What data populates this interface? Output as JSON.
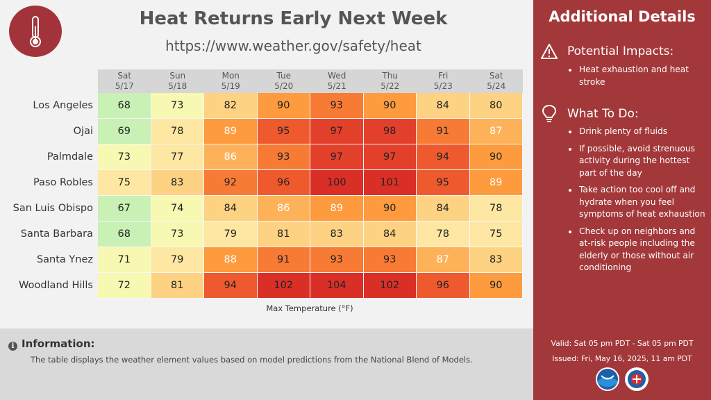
{
  "header": {
    "title": "Heat Returns Early Next Week",
    "url": "https://www.weather.gov/safety/heat"
  },
  "table": {
    "days": [
      {
        "dow": "Sat",
        "date": "5/17"
      },
      {
        "dow": "Sun",
        "date": "5/18"
      },
      {
        "dow": "Mon",
        "date": "5/19"
      },
      {
        "dow": "Tue",
        "date": "5/20"
      },
      {
        "dow": "Wed",
        "date": "5/21"
      },
      {
        "dow": "Thu",
        "date": "5/22"
      },
      {
        "dow": "Fri",
        "date": "5/23"
      },
      {
        "dow": "Sat",
        "date": "5/24"
      }
    ],
    "rows": [
      {
        "city": "Los Angeles",
        "values": [
          68,
          73,
          82,
          90,
          93,
          90,
          84,
          80
        ]
      },
      {
        "city": "Ojai",
        "values": [
          69,
          78,
          89,
          95,
          97,
          98,
          91,
          87
        ]
      },
      {
        "city": "Palmdale",
        "values": [
          73,
          77,
          86,
          93,
          97,
          97,
          94,
          90
        ]
      },
      {
        "city": "Paso Robles",
        "values": [
          75,
          83,
          92,
          96,
          100,
          101,
          95,
          89
        ]
      },
      {
        "city": "San Luis Obispo",
        "values": [
          67,
          74,
          84,
          86,
          89,
          90,
          84,
          78
        ]
      },
      {
        "city": "Santa Barbara",
        "values": [
          68,
          73,
          79,
          81,
          83,
          84,
          78,
          75
        ]
      },
      {
        "city": "Santa Ynez",
        "values": [
          71,
          79,
          88,
          91,
          93,
          93,
          87,
          83
        ]
      },
      {
        "city": "Woodland Hills",
        "values": [
          72,
          81,
          94,
          102,
          104,
          102,
          96,
          90
        ]
      }
    ],
    "caption": "Max Temperature (°F)",
    "colors": {
      "c66": "#c9f0b5",
      "c70": "#f7f8b2",
      "c75": "#fde7a2",
      "c80": "#fdd283",
      "c85": "#fdb25a",
      "c88": "#fd9b3e",
      "c91": "#f77b35",
      "c94": "#ee5a2e",
      "c97": "#e3402b",
      "c100": "#d92f27"
    }
  },
  "info": {
    "title": "Information:",
    "text": "The table displays the weather element values based on model predictions from the National Blend of Models."
  },
  "sidebar": {
    "title": "Additional Details",
    "impacts_heading": "Potential Impacts:",
    "impacts": [
      "Heat exhaustion and heat stroke"
    ],
    "todo_heading": "What To Do:",
    "todo": [
      "Drink plenty of fluids",
      "If possible, avoid strenuous activity during the hottest part of the day",
      "Take action too cool off and hydrate when you feel symptoms of heat exhaustion",
      "Check up on neighbors and at-risk people including the elderly or those without air conditioning"
    ],
    "valid": "Valid: Sat 05 pm PDT - Sat 05 pm PDT",
    "issued": "Issued: Fri, May 16, 2025, 11 am PDT",
    "logos": [
      "noaa-logo",
      "nws-logo"
    ]
  },
  "theme": {
    "accent": "#a3383a",
    "header_bg": "#d6d6d6",
    "info_bg": "#d9d9d9"
  }
}
